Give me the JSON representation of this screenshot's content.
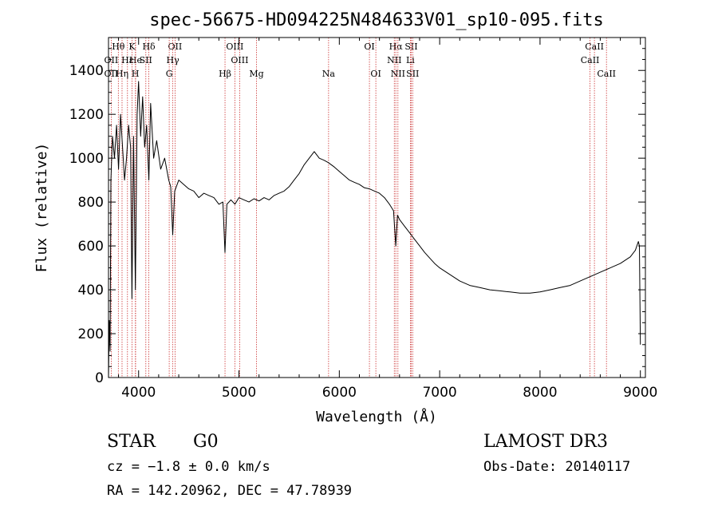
{
  "chart_data": {
    "type": "line",
    "title": "spec-56675-HD094225N484633V01_sp10-095.fits",
    "xlabel": "Wavelength (Å)",
    "ylabel": "Flux (relative)",
    "xlim": [
      3700,
      9050
    ],
    "ylim": [
      0,
      1550
    ],
    "xticks": [
      4000,
      5000,
      6000,
      7000,
      8000,
      9000
    ],
    "yticks": [
      0,
      200,
      400,
      600,
      800,
      1000,
      1200,
      1400
    ],
    "series": [
      {
        "x": [
          3700,
          3708,
          3716,
          3724,
          3740,
          3760,
          3780,
          3800,
          3820,
          3840,
          3860,
          3880,
          3900,
          3920,
          3934,
          3950,
          3968,
          3985,
          4000,
          4020,
          4040,
          4060,
          4080,
          4102,
          4120,
          4150,
          4180,
          4220,
          4260,
          4300,
          4320,
          4340,
          4360,
          4400,
          4450,
          4500,
          4550,
          4600,
          4650,
          4700,
          4750,
          4800,
          4840,
          4861,
          4880,
          4920,
          4960,
          5000,
          5050,
          5100,
          5150,
          5200,
          5250,
          5300,
          5350,
          5400,
          5450,
          5500,
          5550,
          5600,
          5650,
          5700,
          5750,
          5800,
          5850,
          5890,
          5950,
          6000,
          6050,
          6100,
          6150,
          6200,
          6250,
          6300,
          6350,
          6400,
          6450,
          6500,
          6540,
          6563,
          6580,
          6600,
          6650,
          6700,
          6750,
          6800,
          6850,
          6900,
          6950,
          7000,
          7100,
          7200,
          7300,
          7400,
          7500,
          7600,
          7700,
          7800,
          7900,
          8000,
          8100,
          8200,
          8300,
          8400,
          8500,
          8600,
          8700,
          8800,
          8900,
          8950,
          8980,
          8990,
          9000
        ],
        "values": [
          0,
          260,
          120,
          900,
          1100,
          1000,
          1150,
          950,
          1200,
          1050,
          900,
          1000,
          1150,
          1050,
          360,
          1100,
          400,
          1200,
          1350,
          1100,
          1280,
          1050,
          1150,
          900,
          1250,
          1000,
          1080,
          950,
          1000,
          900,
          870,
          650,
          850,
          900,
          880,
          860,
          850,
          820,
          840,
          830,
          820,
          790,
          800,
          570,
          790,
          810,
          790,
          820,
          810,
          800,
          815,
          805,
          820,
          810,
          830,
          840,
          850,
          870,
          900,
          930,
          970,
          1000,
          1030,
          1000,
          990,
          980,
          960,
          940,
          920,
          900,
          890,
          880,
          865,
          860,
          850,
          840,
          820,
          790,
          760,
          600,
          740,
          720,
          690,
          660,
          630,
          600,
          570,
          545,
          520,
          500,
          470,
          440,
          420,
          410,
          400,
          395,
          390,
          385,
          385,
          390,
          400,
          410,
          420,
          440,
          460,
          480,
          500,
          520,
          550,
          580,
          620,
          600,
          150
        ]
      }
    ],
    "line_markers": [
      {
        "label": "Hθ",
        "row": 1,
        "x": 3798
      },
      {
        "label": "K",
        "row": 1,
        "x": 3934
      },
      {
        "label": "Hδ",
        "row": 1,
        "x": 4102
      },
      {
        "label": "OII",
        "row": 1,
        "x": 4363
      },
      {
        "label": "OIII",
        "row": 1,
        "x": 4959
      },
      {
        "label": "OI",
        "row": 1,
        "x": 6300
      },
      {
        "label": "Hα",
        "row": 1,
        "x": 6563
      },
      {
        "label": "SII",
        "row": 1,
        "x": 6717
      },
      {
        "label": "CaII",
        "row": 1,
        "x": 8542
      },
      {
        "label": "OII",
        "row": 2,
        "x": 3727
      },
      {
        "label": "Hε",
        "row": 2,
        "x": 3889
      },
      {
        "label": "He",
        "row": 2,
        "x": 3970
      },
      {
        "label": "SII",
        "row": 2,
        "x": 4072
      },
      {
        "label": "Hγ",
        "row": 2,
        "x": 4341
      },
      {
        "label": "OIII",
        "row": 2,
        "x": 5007
      },
      {
        "label": "NII",
        "row": 2,
        "x": 6548
      },
      {
        "label": "Li",
        "row": 2,
        "x": 6708
      },
      {
        "label": "CaII",
        "row": 2,
        "x": 8498
      },
      {
        "label": "OII",
        "row": 3,
        "x": 3727
      },
      {
        "label": "Hη",
        "row": 3,
        "x": 3835
      },
      {
        "label": "H",
        "row": 3,
        "x": 3968
      },
      {
        "label": "G",
        "row": 3,
        "x": 4305
      },
      {
        "label": "Hβ",
        "row": 3,
        "x": 4861
      },
      {
        "label": "Mg",
        "row": 3,
        "x": 5175
      },
      {
        "label": "Na",
        "row": 3,
        "x": 5893
      },
      {
        "label": "OI",
        "row": 3,
        "x": 6364
      },
      {
        "label": "NII",
        "row": 3,
        "x": 6584
      },
      {
        "label": "SII",
        "row": 3,
        "x": 6731
      },
      {
        "label": "CaII",
        "row": 3,
        "x": 8662
      }
    ],
    "grid": false,
    "marker_color": "#cc3333"
  },
  "info": {
    "class_label": "STAR",
    "subclass": "G0",
    "survey": "LAMOST DR3",
    "cz": "cz = −1.8 ± 0.0 km/s",
    "obs_date": "Obs-Date: 20140117",
    "coords": "RA = 142.20962, DEC =  47.78939"
  }
}
